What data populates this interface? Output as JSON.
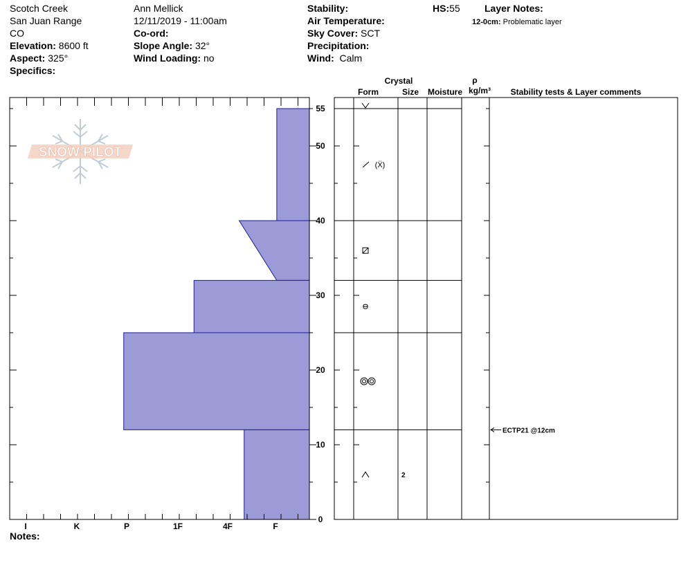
{
  "site": {
    "name": "Scotch Creek",
    "range": "San Juan Range",
    "state": "CO",
    "elevation_label": "Elevation:",
    "elevation_value": "8600 ft",
    "aspect_label": "Aspect:",
    "aspect_value": "325°",
    "specifics_label": "Specifics:"
  },
  "observer": {
    "name": "Ann Mellick",
    "datetime": "12/11/2019 - 11:00am",
    "coord_label": "Co-ord:",
    "slope_label": "Slope Angle:",
    "slope_value": "32°",
    "wind_loading_label": "Wind Loading:",
    "wind_loading_value": "no"
  },
  "conditions": {
    "stability_label": "Stability:",
    "air_temp_label": "Air Temperature:",
    "sky_label": "Sky Cover:",
    "sky_value": "SCT",
    "precip_label": "Precipitation:",
    "wind_label": "Wind:",
    "wind_value": "Calm",
    "hs_label": "HS:",
    "hs_value": "55"
  },
  "layer_notes": {
    "title": "Layer Notes:",
    "range": "12-0cm:",
    "text": "Problematic layer"
  },
  "logo": {
    "text": "SNOW PILOT"
  },
  "columns": {
    "crystal": "Crystal",
    "form": "Form",
    "size": "Size",
    "moisture": "Moisture",
    "rho": "ρ",
    "density_unit": "kg/m³",
    "comments": "Stability tests & Layer comments"
  },
  "notes_label": "Notes:",
  "colors": {
    "hardness_fill": "#9b9bd7",
    "hardness_stroke": "#1a1aa0"
  },
  "chart_data": {
    "type": "area",
    "title": "",
    "xlabel": "",
    "ylabel": "",
    "x_categories": [
      "I",
      "K",
      "P",
      "1F",
      "4F",
      "F"
    ],
    "ylim": [
      0,
      55
    ],
    "y_ticks": [
      0,
      10,
      20,
      30,
      40,
      50,
      55
    ],
    "layers": [
      {
        "top": 55,
        "bottom": 40,
        "hardness_top": 0.65,
        "hardness_bottom": 0.65,
        "form": "slash-pp",
        "size": ""
      },
      {
        "top": 40,
        "bottom": 32,
        "hardness_top": 1.4,
        "hardness_bottom": 0.65,
        "form": "box-fc",
        "size": ""
      },
      {
        "top": 32,
        "bottom": 25,
        "hardness_top": 2.3,
        "hardness_bottom": 2.3,
        "form": "rounded-fc",
        "size": ""
      },
      {
        "top": 25,
        "bottom": 12,
        "hardness_top": 3.7,
        "hardness_bottom": 3.7,
        "form": "melt-forms",
        "size": ""
      },
      {
        "top": 12,
        "bottom": 0,
        "hardness_top": 1.3,
        "hardness_bottom": 1.3,
        "form": "depth-hoar",
        "size": "2"
      }
    ],
    "surface_symbol_depth": 55,
    "stability_tests": [
      {
        "depth": 12,
        "label": "ECTP21 @12cm"
      }
    ]
  }
}
